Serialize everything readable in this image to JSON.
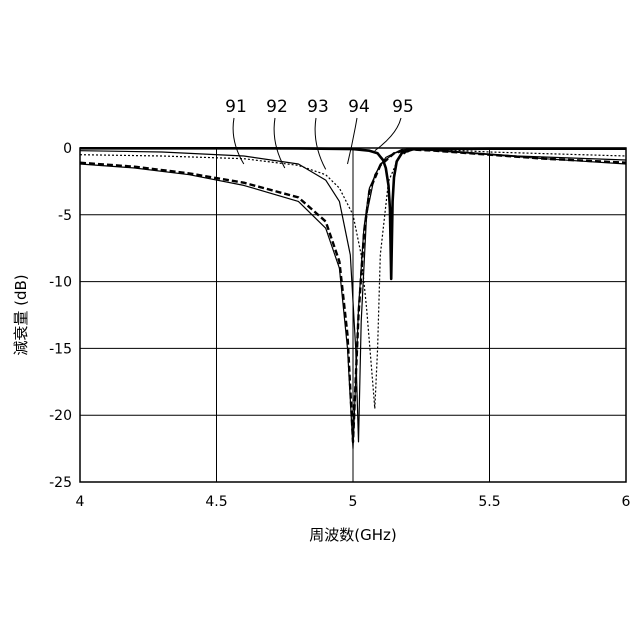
{
  "chart_data": {
    "type": "line",
    "title": "",
    "xlabel": "周波数(GHz)",
    "ylabel": "減衰量 (dB)",
    "xlim": [
      4,
      6
    ],
    "ylim": [
      -25,
      0
    ],
    "xticks": [
      "4",
      "4.5",
      "5",
      "5.5",
      "6"
    ],
    "yticks": [
      "0",
      "-5",
      "-10",
      "-15",
      "-20",
      "-25"
    ],
    "grid": true,
    "series": [
      {
        "name": "91",
        "style": "solid-thin",
        "x": [
          4.0,
          4.2,
          4.4,
          4.6,
          4.8,
          4.9,
          4.95,
          4.98,
          5.0,
          5.02,
          5.04,
          5.06,
          5.1,
          5.15,
          5.2,
          5.3,
          5.5,
          5.7,
          6.0
        ],
        "y": [
          -1.2,
          -1.5,
          -2.0,
          -2.8,
          -4.0,
          -6.0,
          -9.0,
          -15.0,
          -22.5,
          -12.0,
          -6.0,
          -3.0,
          -1.2,
          -0.4,
          -0.1,
          -0.2,
          -0.5,
          -0.8,
          -1.2
        ]
      },
      {
        "name": "92",
        "style": "dashed-bold",
        "x": [
          4.0,
          4.2,
          4.4,
          4.6,
          4.8,
          4.9,
          4.95,
          4.98,
          5.0,
          5.02,
          5.04,
          5.06,
          5.1,
          5.15,
          5.2,
          5.3,
          5.5,
          5.7,
          6.0
        ],
        "y": [
          -1.1,
          -1.4,
          -1.9,
          -2.6,
          -3.7,
          -5.5,
          -8.5,
          -14.0,
          -22.0,
          -12.5,
          -6.5,
          -3.2,
          -1.3,
          -0.4,
          -0.1,
          -0.2,
          -0.5,
          -0.8,
          -1.1
        ]
      },
      {
        "name": "93",
        "style": "solid-thin",
        "x": [
          4.0,
          4.3,
          4.6,
          4.8,
          4.9,
          4.95,
          4.99,
          5.01,
          5.02,
          5.03,
          5.05,
          5.08,
          5.12,
          5.18,
          5.25,
          5.4,
          5.6,
          6.0
        ],
        "y": [
          -0.2,
          -0.3,
          -0.6,
          -1.2,
          -2.4,
          -4.0,
          -8.0,
          -15.0,
          -22.0,
          -13.0,
          -5.0,
          -2.0,
          -0.7,
          -0.1,
          -0.05,
          -0.3,
          -0.6,
          -0.9
        ]
      },
      {
        "name": "94",
        "style": "dotted-thin",
        "x": [
          4.0,
          4.3,
          4.6,
          4.8,
          4.9,
          4.95,
          5.0,
          5.03,
          5.05,
          5.07,
          5.08,
          5.09,
          5.1,
          5.13,
          5.17,
          5.22,
          5.3,
          5.5,
          6.0
        ],
        "y": [
          -0.5,
          -0.6,
          -0.8,
          -1.3,
          -2.0,
          -3.0,
          -5.0,
          -8.0,
          -12.0,
          -17.0,
          -19.5,
          -15.0,
          -8.0,
          -2.5,
          -0.6,
          -0.1,
          -0.1,
          -0.3,
          -0.6
        ]
      },
      {
        "name": "95",
        "style": "solid-bold",
        "x": [
          4.0,
          4.5,
          4.8,
          5.0,
          5.06,
          5.09,
          5.11,
          5.12,
          5.13,
          5.135,
          5.14,
          5.145,
          5.15,
          5.16,
          5.18,
          5.22,
          5.3,
          5.5,
          6.0
        ],
        "y": [
          -0.02,
          -0.02,
          -0.03,
          -0.08,
          -0.2,
          -0.4,
          -0.9,
          -1.5,
          -2.8,
          -4.5,
          -9.8,
          -4.0,
          -2.2,
          -1.0,
          -0.35,
          -0.1,
          -0.08,
          -0.05,
          -0.05
        ]
      }
    ],
    "callouts": [
      {
        "label": "91",
        "x": 4.6,
        "y": -1.2
      },
      {
        "label": "92",
        "x": 4.75,
        "y": -1.5
      },
      {
        "label": "93",
        "x": 4.9,
        "y": -1.6
      },
      {
        "label": "94",
        "x": 4.98,
        "y": -1.2
      },
      {
        "label": "95",
        "x": 5.08,
        "y": -0.2
      }
    ]
  }
}
